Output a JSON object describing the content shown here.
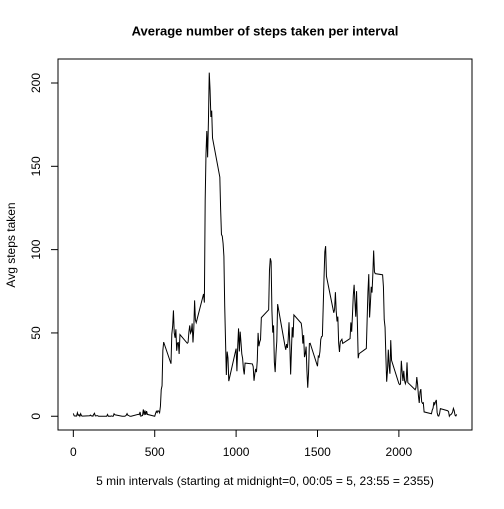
{
  "chart_data": {
    "type": "line",
    "title": "Average number of steps taken per interval",
    "x_label": "5 min intervals (starting at midnight=0, 00:05 = 5, 23:55 = 2355)",
    "y_label": "Avg steps taken",
    "color": "#000000",
    "xlim": [
      -94.2,
      2449.2
    ],
    "xticks": [
      0,
      500,
      1000,
      1500,
      2000
    ],
    "ylim": [
      -8.25,
      214.4
    ],
    "yticks": [
      0,
      50,
      100,
      150,
      200
    ],
    "x": [
      0,
      5,
      10,
      15,
      20,
      25,
      30,
      35,
      40,
      45,
      50,
      55,
      100,
      105,
      110,
      115,
      120,
      125,
      130,
      135,
      140,
      145,
      150,
      155,
      200,
      205,
      210,
      215,
      220,
      225,
      230,
      235,
      240,
      245,
      250,
      255,
      300,
      305,
      310,
      315,
      320,
      325,
      330,
      335,
      340,
      345,
      350,
      355,
      400,
      405,
      410,
      415,
      420,
      425,
      430,
      435,
      440,
      445,
      450,
      455,
      500,
      505,
      510,
      515,
      520,
      525,
      530,
      535,
      540,
      545,
      550,
      555,
      600,
      605,
      610,
      615,
      620,
      625,
      630,
      635,
      640,
      645,
      650,
      655,
      700,
      705,
      710,
      715,
      720,
      725,
      730,
      735,
      740,
      745,
      750,
      755,
      800,
      805,
      810,
      815,
      820,
      825,
      830,
      835,
      840,
      845,
      850,
      855,
      900,
      905,
      910,
      915,
      920,
      925,
      930,
      935,
      940,
      945,
      950,
      955,
      1000,
      1005,
      1010,
      1015,
      1020,
      1025,
      1030,
      1035,
      1040,
      1045,
      1050,
      1055,
      1100,
      1105,
      1110,
      1115,
      1120,
      1125,
      1130,
      1135,
      1140,
      1145,
      1150,
      1155,
      1200,
      1205,
      1210,
      1215,
      1220,
      1225,
      1230,
      1235,
      1240,
      1245,
      1250,
      1255,
      1300,
      1305,
      1310,
      1315,
      1320,
      1325,
      1330,
      1335,
      1340,
      1345,
      1350,
      1355,
      1400,
      1405,
      1410,
      1415,
      1420,
      1425,
      1430,
      1435,
      1440,
      1445,
      1450,
      1455,
      1500,
      1505,
      1510,
      1515,
      1520,
      1525,
      1530,
      1535,
      1540,
      1545,
      1550,
      1555,
      1600,
      1605,
      1610,
      1615,
      1620,
      1625,
      1630,
      1635,
      1640,
      1645,
      1650,
      1655,
      1700,
      1705,
      1710,
      1715,
      1720,
      1725,
      1730,
      1735,
      1740,
      1745,
      1750,
      1755,
      1800,
      1805,
      1810,
      1815,
      1820,
      1825,
      1830,
      1835,
      1840,
      1845,
      1850,
      1855,
      1900,
      1905,
      1910,
      1915,
      1920,
      1925,
      1930,
      1935,
      1940,
      1945,
      1950,
      1955,
      2000,
      2005,
      2010,
      2015,
      2020,
      2025,
      2030,
      2035,
      2040,
      2045,
      2050,
      2055,
      2100,
      2105,
      2110,
      2115,
      2120,
      2125,
      2130,
      2135,
      2140,
      2145,
      2150,
      2155,
      2200,
      2205,
      2210,
      2215,
      2220,
      2225,
      2230,
      2235,
      2240,
      2245,
      2250,
      2255,
      2300,
      2305,
      2310,
      2315,
      2320,
      2325,
      2330,
      2335,
      2340,
      2345,
      2350,
      2355
    ],
    "values": [
      1.7,
      0.3,
      0.1,
      0.2,
      0.1,
      2.1,
      0.5,
      0.9,
      0,
      1.5,
      0.3,
      0.1,
      0.3,
      0.7,
      0.2,
      0.3,
      0,
      1.1,
      1.8,
      0.2,
      0.2,
      0.4,
      0.3,
      0,
      0,
      0,
      1.1,
      0,
      0,
      0.1,
      0,
      0.2,
      0,
      0,
      1.5,
      0.9,
      0,
      0,
      0,
      0,
      0.2,
      0.6,
      1.6,
      0.6,
      0.5,
      0.1,
      0,
      0,
      1.2,
      0.9,
      2.6,
      0,
      0.3,
      0.4,
      4.1,
      0.7,
      3.5,
      0.8,
      3.1,
      1.1,
      0,
      1.6,
      3,
      2.2,
      3.3,
      3,
      2.1,
      6,
      16,
      18.3,
      39.5,
      44.5,
      31.5,
      49.3,
      53.8,
      63.5,
      50,
      47.1,
      52.2,
      39.3,
      44,
      44.2,
      37.4,
      49,
      43.8,
      44.4,
      50.5,
      54.5,
      49.9,
      51,
      55.7,
      44.3,
      52.3,
      69.5,
      57.8,
      56.2,
      73.4,
      68.2,
      129.4,
      157.5,
      171.2,
      155.4,
      177.3,
      206.2,
      195.9,
      179.6,
      183.4,
      167,
      143.5,
      124,
      109.1,
      108.1,
      103.7,
      96,
      66.2,
      45.2,
      24.8,
      38.8,
      35,
      21.1,
      40.6,
      27,
      42.4,
      52.7,
      38.9,
      50.8,
      44.3,
      37.4,
      34.7,
      28.3,
      25.1,
      31.9,
      31.4,
      29.7,
      21.3,
      25.5,
      28.4,
      26.5,
      33.4,
      50,
      42,
      44.6,
      46,
      59.2,
      63.9,
      87.7,
      94.8,
      92.8,
      63.4,
      50.2,
      54.5,
      32.4,
      26.5,
      37.7,
      45.1,
      67.3,
      42.3,
      39.9,
      43.3,
      41,
      46.2,
      56.4,
      42.8,
      25.1,
      40,
      53.5,
      47.3,
      60.8,
      55.8,
      52,
      43.6,
      48.7,
      35.5,
      37.5,
      41.8,
      27.5,
      17.1,
      26.1,
      43.6,
      43.8,
      30,
      36.1,
      35.5,
      38.8,
      46,
      47.8,
      48.1,
      65.3,
      82.9,
      98.7,
      102.1,
      84,
      62.1,
      64.1,
      74.5,
      63.2,
      56.9,
      59.8,
      43.9,
      38.6,
      44.7,
      45.5,
      46.2,
      43.7,
      46.6,
      56.3,
      50.7,
      61.2,
      72.7,
      78.9,
      68.9,
      59.7,
      75.1,
      56.5,
      34.8,
      37.5,
      40.7,
      58,
      74.7,
      85.3,
      59.3,
      67.8,
      77.7,
      74.2,
      85.3,
      99.5,
      86.6,
      85.6,
      84.9,
      77.8,
      58,
      53.4,
      36.3,
      20.7,
      27.4,
      40,
      30.2,
      25.5,
      45.7,
      33.5,
      19.6,
      19,
      19.3,
      33.3,
      26.8,
      21.2,
      27.3,
      21.3,
      19.5,
      21.3,
      32.3,
      20.2,
      15.9,
      17.2,
      23.5,
      19.2,
      12.5,
      8,
      14.7,
      16.3,
      8.7,
      7.8,
      8.1,
      2.6,
      1.5,
      3.7,
      4.8,
      8.5,
      7.1,
      8.7,
      9.8,
      2.2,
      0.3,
      0.1,
      1.6,
      4.6,
      3.3,
      2.8,
      0,
      0.8,
      1,
      1.6,
      2.6,
      4.7,
      3.3,
      0.6,
      0.2,
      1.1
    ]
  }
}
